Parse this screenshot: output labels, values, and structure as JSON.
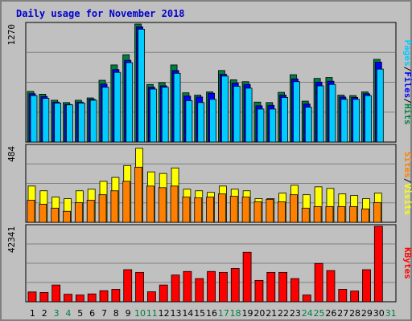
{
  "title": "Daily usage for November 2018",
  "colors": {
    "pages": "#00ccff",
    "files": "#0000ff",
    "hits": "#008040",
    "sites": "#ff8000",
    "visits": "#ffff00",
    "kbytes": "#ff0000",
    "weekday_label": "#000000",
    "weekend_label": "#008040"
  },
  "chart_data": [
    {
      "type": "bar",
      "name": "hits-files-pages",
      "ymax_label": "1270",
      "ylim": [
        0,
        1270
      ],
      "legend": [
        "Pages",
        "Files",
        "Hits"
      ],
      "categories": [
        "1",
        "2",
        "3",
        "4",
        "5",
        "6",
        "7",
        "8",
        "9",
        "10",
        "11",
        "12",
        "13",
        "14",
        "15",
        "16",
        "17",
        "18",
        "19",
        "20",
        "21",
        "22",
        "23",
        "24",
        "25",
        "26",
        "27",
        "28",
        "29",
        "30",
        "31"
      ],
      "series": [
        {
          "name": "Hits",
          "values": [
            545,
            515,
            450,
            425,
            450,
            475,
            665,
            830,
            940,
            1270,
            620,
            640,
            830,
            530,
            505,
            540,
            770,
            670,
            650,
            430,
            425,
            535,
            725,
            440,
            685,
            695,
            505,
            500,
            540,
            890,
            0
          ]
        },
        {
          "name": "Files",
          "values": [
            520,
            490,
            430,
            405,
            430,
            460,
            625,
            780,
            880,
            1240,
            590,
            605,
            770,
            495,
            485,
            525,
            730,
            635,
            620,
            390,
            395,
            505,
            680,
            410,
            645,
            655,
            485,
            480,
            520,
            860,
            0
          ]
        },
        {
          "name": "Pages",
          "values": [
            500,
            470,
            420,
            400,
            420,
            450,
            590,
            750,
            855,
            1215,
            570,
            590,
            740,
            445,
            425,
            460,
            710,
            600,
            580,
            355,
            355,
            480,
            650,
            375,
            605,
            620,
            460,
            460,
            500,
            785,
            0
          ]
        }
      ]
    },
    {
      "type": "bar",
      "name": "visits-sites",
      "ymax_label": "484",
      "ylim": [
        0,
        484
      ],
      "legend": [
        "Sites",
        "Visits"
      ],
      "categories": [
        "1",
        "2",
        "3",
        "4",
        "5",
        "6",
        "7",
        "8",
        "9",
        "10",
        "11",
        "12",
        "13",
        "14",
        "15",
        "16",
        "17",
        "18",
        "19",
        "20",
        "21",
        "22",
        "23",
        "24",
        "25",
        "26",
        "27",
        "28",
        "29",
        "30",
        "31"
      ],
      "series": [
        {
          "name": "Visits",
          "values": [
            230,
            200,
            160,
            150,
            200,
            210,
            260,
            285,
            360,
            470,
            320,
            310,
            345,
            210,
            200,
            190,
            230,
            210,
            200,
            150,
            150,
            185,
            235,
            175,
            225,
            215,
            180,
            170,
            150,
            185,
            0
          ]
        },
        {
          "name": "Sites",
          "values": [
            140,
            115,
            90,
            70,
            125,
            140,
            175,
            200,
            260,
            350,
            230,
            220,
            230,
            160,
            155,
            160,
            180,
            165,
            160,
            130,
            145,
            130,
            175,
            90,
            100,
            100,
            100,
            100,
            85,
            125,
            0
          ]
        }
      ]
    },
    {
      "type": "bar",
      "name": "kbytes",
      "ymax_label": "42341",
      "ylim": [
        0,
        42341
      ],
      "legend": [
        "KBytes"
      ],
      "categories": [
        "1",
        "2",
        "3",
        "4",
        "5",
        "6",
        "7",
        "8",
        "9",
        "10",
        "11",
        "12",
        "13",
        "14",
        "15",
        "16",
        "17",
        "18",
        "19",
        "20",
        "21",
        "22",
        "23",
        "24",
        "25",
        "26",
        "27",
        "28",
        "29",
        "30",
        "31"
      ],
      "series": [
        {
          "name": "KBytes",
          "values": [
            5500,
            5200,
            9400,
            4200,
            3800,
            4400,
            6200,
            7000,
            18000,
            16500,
            5600,
            9400,
            15000,
            17000,
            13000,
            17000,
            16500,
            18700,
            27800,
            12000,
            16500,
            16500,
            13000,
            3800,
            21500,
            17500,
            7000,
            6000,
            18000,
            42341,
            0
          ]
        }
      ]
    }
  ],
  "x_labels": [
    {
      "label": "1",
      "weekend": false
    },
    {
      "label": "2",
      "weekend": false
    },
    {
      "label": "3",
      "weekend": true
    },
    {
      "label": "4",
      "weekend": true
    },
    {
      "label": "5",
      "weekend": false
    },
    {
      "label": "6",
      "weekend": false
    },
    {
      "label": "7",
      "weekend": false
    },
    {
      "label": "8",
      "weekend": false
    },
    {
      "label": "9",
      "weekend": false
    },
    {
      "label": "10",
      "weekend": true
    },
    {
      "label": "11",
      "weekend": true
    },
    {
      "label": "12",
      "weekend": false
    },
    {
      "label": "13",
      "weekend": false
    },
    {
      "label": "14",
      "weekend": false
    },
    {
      "label": "15",
      "weekend": false
    },
    {
      "label": "16",
      "weekend": false
    },
    {
      "label": "17",
      "weekend": true
    },
    {
      "label": "18",
      "weekend": true
    },
    {
      "label": "19",
      "weekend": false
    },
    {
      "label": "20",
      "weekend": false
    },
    {
      "label": "21",
      "weekend": false
    },
    {
      "label": "22",
      "weekend": false
    },
    {
      "label": "23",
      "weekend": false
    },
    {
      "label": "24",
      "weekend": true
    },
    {
      "label": "25",
      "weekend": true
    },
    {
      "label": "26",
      "weekend": false
    },
    {
      "label": "27",
      "weekend": false
    },
    {
      "label": "28",
      "weekend": false
    },
    {
      "label": "29",
      "weekend": false
    },
    {
      "label": "30",
      "weekend": false
    },
    {
      "label": "31",
      "weekend": true
    }
  ]
}
